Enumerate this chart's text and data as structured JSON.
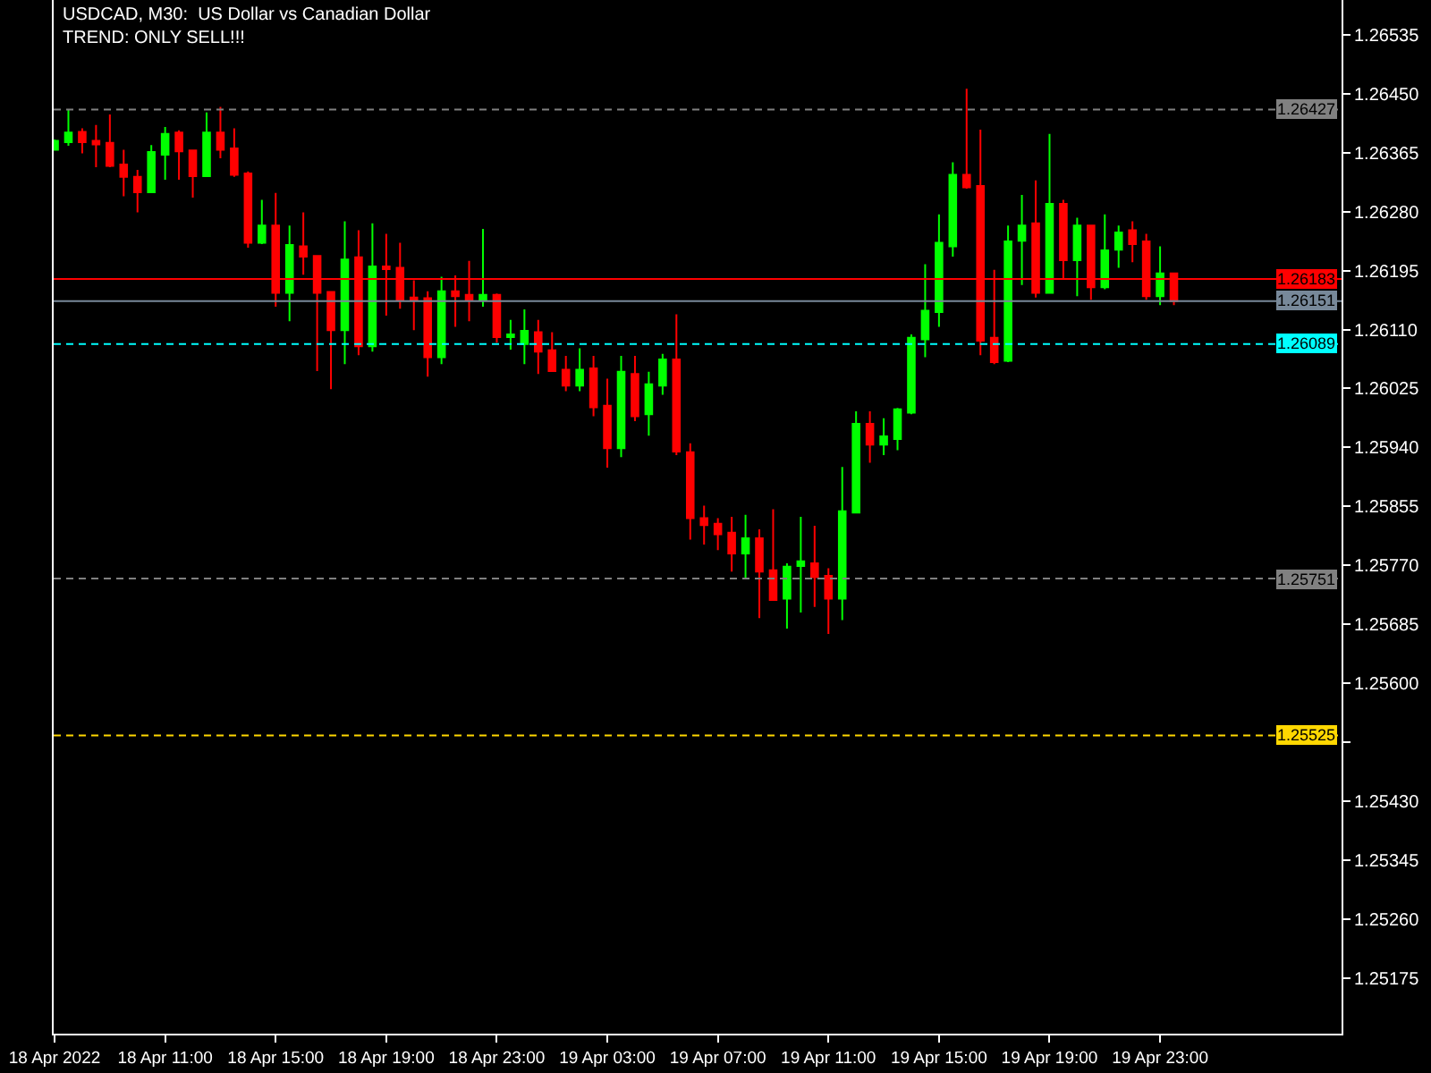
{
  "chart_data": {
    "type": "candlestick",
    "title": "USDCAD, M30:  US Dollar vs Canadian Dollar",
    "subtitle": "TREND: ONLY SELL!!!",
    "x": [
      "2022-04-18T07:00",
      "2022-04-18T07:30",
      "2022-04-18T08:00",
      "2022-04-18T08:30",
      "2022-04-18T09:00",
      "2022-04-18T09:30",
      "2022-04-18T10:00",
      "2022-04-18T10:30",
      "2022-04-18T11:00",
      "2022-04-18T11:30",
      "2022-04-18T12:00",
      "2022-04-18T12:30",
      "2022-04-18T13:00",
      "2022-04-18T13:30",
      "2022-04-18T14:00",
      "2022-04-18T14:30",
      "2022-04-18T15:00",
      "2022-04-18T15:30",
      "2022-04-18T16:00",
      "2022-04-18T16:30",
      "2022-04-18T17:00",
      "2022-04-18T17:30",
      "2022-04-18T18:00",
      "2022-04-18T18:30",
      "2022-04-18T19:00",
      "2022-04-18T19:30",
      "2022-04-18T20:00",
      "2022-04-18T20:30",
      "2022-04-18T21:00",
      "2022-04-18T21:30",
      "2022-04-18T22:00",
      "2022-04-18T22:30",
      "2022-04-18T23:00",
      "2022-04-18T23:30",
      "2022-04-19T00:00",
      "2022-04-19T00:30",
      "2022-04-19T01:00",
      "2022-04-19T01:30",
      "2022-04-19T02:00",
      "2022-04-19T02:30",
      "2022-04-19T03:00",
      "2022-04-19T03:30",
      "2022-04-19T04:00",
      "2022-04-19T04:30",
      "2022-04-19T05:00",
      "2022-04-19T05:30",
      "2022-04-19T06:00",
      "2022-04-19T06:30",
      "2022-04-19T07:00",
      "2022-04-19T07:30",
      "2022-04-19T08:00",
      "2022-04-19T08:30",
      "2022-04-19T09:00",
      "2022-04-19T09:30",
      "2022-04-19T10:00",
      "2022-04-19T10:30",
      "2022-04-19T11:00",
      "2022-04-19T11:30",
      "2022-04-19T12:00",
      "2022-04-19T12:30",
      "2022-04-19T13:00",
      "2022-04-19T13:30",
      "2022-04-19T14:00",
      "2022-04-19T14:30",
      "2022-04-19T15:00",
      "2022-04-19T15:30",
      "2022-04-19T16:00",
      "2022-04-19T16:30",
      "2022-04-19T17:00",
      "2022-04-19T17:30",
      "2022-04-19T18:00",
      "2022-04-19T18:30",
      "2022-04-19T19:00",
      "2022-04-19T19:30",
      "2022-04-19T20:00",
      "2022-04-19T20:30",
      "2022-04-19T21:00",
      "2022-04-19T21:30",
      "2022-04-19T22:00",
      "2022-04-19T22:30",
      "2022-04-19T23:00",
      "2022-04-19T23:30"
    ],
    "ohlc": [
      [
        1.26369,
        1.26384,
        1.26368,
        1.26382
      ],
      [
        1.2638,
        1.26427,
        1.26375,
        1.26394
      ],
      [
        1.26395,
        1.264,
        1.26364,
        1.2638
      ],
      [
        1.26382,
        1.26405,
        1.26344,
        1.26377
      ],
      [
        1.26379,
        1.2642,
        1.26344,
        1.26346
      ],
      [
        1.26348,
        1.26369,
        1.26302,
        1.2633
      ],
      [
        1.2633,
        1.2634,
        1.26279,
        1.26308
      ],
      [
        1.26308,
        1.26376,
        1.26307,
        1.26366
      ],
      [
        1.26362,
        1.26402,
        1.26326,
        1.26392
      ],
      [
        1.26394,
        1.26397,
        1.26326,
        1.26367
      ],
      [
        1.26368,
        1.26369,
        1.263,
        1.26331
      ],
      [
        1.26331,
        1.26423,
        1.2633,
        1.26394
      ],
      [
        1.26394,
        1.26431,
        1.26357,
        1.26369
      ],
      [
        1.26371,
        1.264,
        1.2633,
        1.26333
      ],
      [
        1.26335,
        1.26338,
        1.26228,
        1.26235
      ],
      [
        1.26235,
        1.26297,
        1.26233,
        1.2626
      ],
      [
        1.2626,
        1.26307,
        1.26143,
        1.26163
      ],
      [
        1.26163,
        1.2626,
        1.26122,
        1.26232
      ],
      [
        1.2623,
        1.26279,
        1.26189,
        1.26215
      ],
      [
        1.26216,
        1.26217,
        1.2605,
        1.26163
      ],
      [
        1.26164,
        1.26165,
        1.26024,
        1.26109
      ],
      [
        1.26109,
        1.26266,
        1.2606,
        1.26211
      ],
      [
        1.26214,
        1.26253,
        1.26073,
        1.26086
      ],
      [
        1.26086,
        1.26263,
        1.26078,
        1.26201
      ],
      [
        1.26201,
        1.26248,
        1.2613,
        1.26197
      ],
      [
        1.26199,
        1.26235,
        1.2614,
        1.26153
      ],
      [
        1.26156,
        1.26181,
        1.26109,
        1.26153
      ],
      [
        1.26155,
        1.26165,
        1.26042,
        1.2607
      ],
      [
        1.2607,
        1.26186,
        1.2606,
        1.26165
      ],
      [
        1.26165,
        1.26188,
        1.26114,
        1.26158
      ],
      [
        1.2616,
        1.26209,
        1.26122,
        1.26153
      ],
      [
        1.26153,
        1.26255,
        1.26143,
        1.2616
      ],
      [
        1.2616,
        1.26162,
        1.26091,
        1.26099
      ],
      [
        1.26099,
        1.26124,
        1.26081,
        1.26103
      ],
      [
        1.26089,
        1.26139,
        1.2606,
        1.26108
      ],
      [
        1.26106,
        1.26124,
        1.26046,
        1.26078
      ],
      [
        1.2608,
        1.26106,
        1.26049,
        1.2605
      ],
      [
        1.26052,
        1.26072,
        1.26021,
        1.26029
      ],
      [
        1.26029,
        1.26083,
        1.26021,
        1.26052
      ],
      [
        1.26054,
        1.26072,
        1.25985,
        1.25998
      ],
      [
        1.26,
        1.26039,
        1.25911,
        1.25939
      ],
      [
        1.25939,
        1.26072,
        1.25926,
        1.26049
      ],
      [
        1.26046,
        1.26072,
        1.25978,
        1.25985
      ],
      [
        1.25988,
        1.26049,
        1.25957,
        1.26031
      ],
      [
        1.26029,
        1.26075,
        1.26016,
        1.26067
      ],
      [
        1.26067,
        1.26132,
        1.25929,
        1.25934
      ],
      [
        1.25933,
        1.25946,
        1.25807,
        1.25838
      ],
      [
        1.25838,
        1.25856,
        1.258,
        1.25828
      ],
      [
        1.2583,
        1.25838,
        1.25792,
        1.25815
      ],
      [
        1.25817,
        1.2584,
        1.25761,
        1.25787
      ],
      [
        1.25787,
        1.25843,
        1.25751,
        1.25809
      ],
      [
        1.25809,
        1.25822,
        1.25694,
        1.25761
      ],
      [
        1.25763,
        1.25851,
        1.25719,
        1.2572
      ],
      [
        1.25722,
        1.25773,
        1.25679,
        1.25768
      ],
      [
        1.25769,
        1.2584,
        1.25702,
        1.25776
      ],
      [
        1.25773,
        1.25827,
        1.2571,
        1.25753
      ],
      [
        1.25755,
        1.25766,
        1.25671,
        1.25722
      ],
      [
        1.25722,
        1.25912,
        1.25691,
        1.25848
      ],
      [
        1.25846,
        1.25992,
        1.25845,
        1.25974
      ],
      [
        1.25974,
        1.25992,
        1.25918,
        1.25944
      ],
      [
        1.25944,
        1.25982,
        1.25929,
        1.25956
      ],
      [
        1.25952,
        1.25997,
        1.25936,
        1.25995
      ],
      [
        1.2599,
        1.26103,
        1.25988,
        1.26098
      ],
      [
        1.26096,
        1.26204,
        1.2607,
        1.26137
      ],
      [
        1.26135,
        1.26276,
        1.26114,
        1.26235
      ],
      [
        1.2623,
        1.26351,
        1.26215,
        1.26333
      ],
      [
        1.26333,
        1.26457,
        1.26313,
        1.26315
      ],
      [
        1.26317,
        1.26398,
        1.26073,
        1.26094
      ],
      [
        1.26098,
        1.26196,
        1.2606,
        1.26063
      ],
      [
        1.26065,
        1.2626,
        1.26063,
        1.26237
      ],
      [
        1.26238,
        1.26304,
        1.26174,
        1.2626
      ],
      [
        1.26263,
        1.26325,
        1.26156,
        1.26163
      ],
      [
        1.26163,
        1.26392,
        1.26162,
        1.26291
      ],
      [
        1.26291,
        1.26297,
        1.26184,
        1.2621
      ],
      [
        1.2621,
        1.26271,
        1.26158,
        1.2626
      ],
      [
        1.2626,
        1.26261,
        1.26153,
        1.26171
      ],
      [
        1.26171,
        1.26276,
        1.26168,
        1.26224
      ],
      [
        1.26225,
        1.2626,
        1.26199,
        1.2625
      ],
      [
        1.26253,
        1.26266,
        1.26207,
        1.26233
      ],
      [
        1.26237,
        1.26248,
        1.26153,
        1.26158
      ],
      [
        1.26158,
        1.2623,
        1.26145,
        1.26191
      ],
      [
        1.26191,
        1.26192,
        1.26145,
        1.26151
      ]
    ],
    "colors": [
      "#00ff00",
      "#00ff00",
      "#ff0000",
      "#ff0000",
      "#ff0000",
      "#ff0000",
      "#ff0000",
      "#00ff00",
      "#00ff00",
      "#ff0000",
      "#ff0000",
      "#00ff00",
      "#ff0000",
      "#ff0000",
      "#ff0000",
      "#00ff00",
      "#ff0000",
      "#00ff00",
      "#ff0000",
      "#ff0000",
      "#ff0000",
      "#00ff00",
      "#ff0000",
      "#00ff00",
      "#ff0000",
      "#ff0000",
      "#ff0000",
      "#ff0000",
      "#00ff00",
      "#ff0000",
      "#ff0000",
      "#00ff00",
      "#ff0000",
      "#00ff00",
      "#00ff00",
      "#ff0000",
      "#ff0000",
      "#ff0000",
      "#00ff00",
      "#ff0000",
      "#ff0000",
      "#00ff00",
      "#ff0000",
      "#00ff00",
      "#00ff00",
      "#ff0000",
      "#ff0000",
      "#ff0000",
      "#ff0000",
      "#ff0000",
      "#00ff00",
      "#ff0000",
      "#ff0000",
      "#00ff00",
      "#00ff00",
      "#ff0000",
      "#ff0000",
      "#00ff00",
      "#00ff00",
      "#ff0000",
      "#00ff00",
      "#00ff00",
      "#00ff00",
      "#00ff00",
      "#00ff00",
      "#00ff00",
      "#ff0000",
      "#ff0000",
      "#ff0000",
      "#00ff00",
      "#00ff00",
      "#ff0000",
      "#00ff00",
      "#ff0000",
      "#00ff00",
      "#ff0000",
      "#00ff00",
      "#00ff00",
      "#ff0000",
      "#ff0000",
      "#00ff00",
      "#ff0000"
    ],
    "xlim": [
      "2022-04-18T06:58",
      "2022-04-20T05:34"
    ],
    "xticks": [
      {
        "value": "2022-04-18T07:00",
        "label": "18 Apr 2022"
      },
      {
        "value": "2022-04-18T11:00",
        "label": "18 Apr 11:00"
      },
      {
        "value": "2022-04-18T15:00",
        "label": "18 Apr 15:00"
      },
      {
        "value": "2022-04-18T19:00",
        "label": "18 Apr 19:00"
      },
      {
        "value": "2022-04-18T23:00",
        "label": "18 Apr 23:00"
      },
      {
        "value": "2022-04-19T03:00",
        "label": "19 Apr 03:00"
      },
      {
        "value": "2022-04-19T07:00",
        "label": "19 Apr 07:00"
      },
      {
        "value": "2022-04-19T11:00",
        "label": "19 Apr 11:00"
      },
      {
        "value": "2022-04-19T15:00",
        "label": "19 Apr 15:00"
      },
      {
        "value": "2022-04-19T19:00",
        "label": "19 Apr 19:00"
      },
      {
        "value": "2022-04-19T23:00",
        "label": "19 Apr 23:00"
      }
    ],
    "ylim": [
      1.25095,
      1.26585
    ],
    "yticks": [
      1.26535,
      {
        "value": 1.2645,
        "label": "1.26450"
      },
      1.26365,
      {
        "value": 1.2628,
        "label": "1.26280"
      },
      1.26195,
      {
        "value": 1.2611,
        "label": "1.26110"
      },
      1.26025,
      {
        "value": 1.2594,
        "label": "1.25940"
      },
      1.25855,
      {
        "value": 1.2577,
        "label": "1.25770"
      },
      1.25685,
      {
        "value": 1.256,
        "label": "1.25600"
      },
      {
        "value": 1.25515,
        "label": null
      },
      {
        "value": 1.2543,
        "label": "1.25430"
      },
      1.25345,
      {
        "value": 1.2526,
        "label": "1.25260"
      },
      1.25175
    ],
    "ref_lines": [
      {
        "axis": "y",
        "value": 1.26427,
        "label": "1.26427",
        "color": "#808080",
        "line_style": "dashed"
      },
      {
        "axis": "y",
        "value": 1.26183,
        "label": "1.26183",
        "color": "#ff0000",
        "line_style": "solid"
      },
      {
        "axis": "y",
        "value": 1.26151,
        "label": "1.26151",
        "color": "#778899",
        "line_style": "solid"
      },
      {
        "axis": "y",
        "value": 1.26089,
        "label": "1.26089",
        "color": "#00ffff",
        "line_style": "dashed"
      },
      {
        "axis": "y",
        "value": 1.25751,
        "label": "1.25751",
        "color": "#808080",
        "line_style": "dashed"
      },
      {
        "axis": "y",
        "value": 1.25525,
        "label": "1.25525",
        "color": "#ffd700",
        "line_style": "dashed"
      }
    ]
  }
}
